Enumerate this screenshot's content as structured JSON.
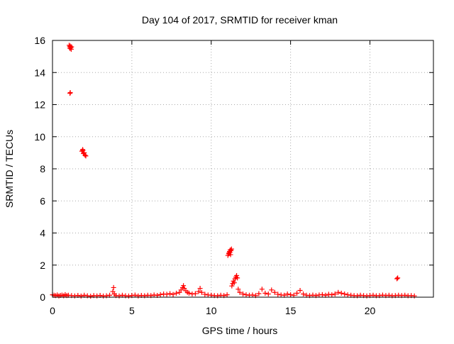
{
  "chart_data": {
    "type": "scatter",
    "title": "Day 104 of 2017, SRMTID for receiver kman",
    "xlabel": "GPS time / hours",
    "ylabel": "SRMTID / TECUs",
    "xlim": [
      0,
      24
    ],
    "ylim": [
      0,
      16
    ],
    "xticks": [
      0,
      5,
      10,
      15,
      20
    ],
    "yticks": [
      0,
      2,
      4,
      6,
      8,
      10,
      12,
      14,
      16
    ],
    "xtick_labels": [
      "0",
      "5",
      "10",
      "15",
      "20"
    ],
    "ytick_labels": [
      "0",
      "2",
      "4",
      "6",
      "8",
      "10",
      "12",
      "14",
      "16"
    ],
    "grid": true,
    "grid_style": "dotted",
    "marker": "plus",
    "color": "#ff0000",
    "series": [
      {
        "points": [
          [
            0.0,
            0.15
          ],
          [
            0.1,
            0.12
          ],
          [
            0.2,
            0.1
          ],
          [
            0.3,
            0.14
          ],
          [
            0.4,
            0.08
          ],
          [
            0.5,
            0.11
          ],
          [
            0.6,
            0.13
          ],
          [
            0.7,
            0.09
          ],
          [
            0.8,
            0.16
          ],
          [
            0.9,
            0.1
          ],
          [
            1.0,
            0.12
          ],
          [
            1.2,
            0.1
          ],
          [
            1.4,
            0.08
          ],
          [
            1.6,
            0.11
          ],
          [
            1.8,
            0.07
          ],
          [
            2.0,
            0.12
          ],
          [
            2.2,
            0.09
          ],
          [
            2.4,
            0.06
          ],
          [
            2.6,
            0.1
          ],
          [
            2.8,
            0.08
          ],
          [
            3.0,
            0.11
          ],
          [
            3.2,
            0.07
          ],
          [
            3.4,
            0.09
          ],
          [
            3.6,
            0.12
          ],
          [
            3.8,
            0.35
          ],
          [
            3.85,
            0.6
          ],
          [
            3.9,
            0.2
          ],
          [
            4.0,
            0.1
          ],
          [
            4.2,
            0.08
          ],
          [
            4.4,
            0.12
          ],
          [
            4.6,
            0.09
          ],
          [
            4.8,
            0.07
          ],
          [
            5.0,
            0.1
          ],
          [
            5.2,
            0.13
          ],
          [
            5.4,
            0.08
          ],
          [
            5.6,
            0.11
          ],
          [
            5.8,
            0.09
          ],
          [
            6.0,
            0.12
          ],
          [
            6.2,
            0.1
          ],
          [
            6.4,
            0.14
          ],
          [
            6.6,
            0.11
          ],
          [
            6.8,
            0.16
          ],
          [
            7.0,
            0.2
          ],
          [
            7.2,
            0.18
          ],
          [
            7.4,
            0.22
          ],
          [
            7.6,
            0.17
          ],
          [
            7.8,
            0.25
          ],
          [
            8.0,
            0.3
          ],
          [
            8.1,
            0.45
          ],
          [
            8.2,
            0.6
          ],
          [
            8.25,
            0.72
          ],
          [
            8.3,
            0.55
          ],
          [
            8.4,
            0.4
          ],
          [
            8.5,
            0.3
          ],
          [
            8.6,
            0.25
          ],
          [
            8.8,
            0.2
          ],
          [
            9.0,
            0.22
          ],
          [
            9.2,
            0.35
          ],
          [
            9.3,
            0.55
          ],
          [
            9.4,
            0.3
          ],
          [
            9.6,
            0.18
          ],
          [
            9.8,
            0.14
          ],
          [
            10.0,
            0.12
          ],
          [
            10.2,
            0.1
          ],
          [
            10.4,
            0.09
          ],
          [
            10.6,
            0.12
          ],
          [
            10.8,
            0.1
          ],
          [
            11.0,
            0.15
          ],
          [
            11.05,
            2.6
          ],
          [
            11.1,
            2.7
          ],
          [
            11.12,
            2.75
          ],
          [
            11.15,
            2.85
          ],
          [
            11.18,
            2.8
          ],
          [
            11.2,
            2.95
          ],
          [
            11.22,
            2.65
          ],
          [
            11.25,
            2.9
          ],
          [
            11.28,
            3.0
          ],
          [
            11.3,
            0.7
          ],
          [
            11.35,
            0.85
          ],
          [
            11.4,
            1.0
          ],
          [
            11.45,
            0.9
          ],
          [
            11.5,
            1.15
          ],
          [
            11.55,
            1.25
          ],
          [
            11.6,
            1.35
          ],
          [
            11.65,
            1.2
          ],
          [
            11.7,
            0.5
          ],
          [
            11.8,
            0.3
          ],
          [
            12.0,
            0.2
          ],
          [
            12.2,
            0.15
          ],
          [
            12.4,
            0.12
          ],
          [
            12.6,
            0.14
          ],
          [
            12.8,
            0.1
          ],
          [
            13.0,
            0.22
          ],
          [
            13.2,
            0.5
          ],
          [
            13.4,
            0.25
          ],
          [
            13.6,
            0.2
          ],
          [
            13.8,
            0.45
          ],
          [
            14.0,
            0.3
          ],
          [
            14.2,
            0.18
          ],
          [
            14.4,
            0.14
          ],
          [
            14.6,
            0.12
          ],
          [
            14.8,
            0.2
          ],
          [
            15.0,
            0.15
          ],
          [
            15.2,
            0.12
          ],
          [
            15.4,
            0.25
          ],
          [
            15.6,
            0.42
          ],
          [
            15.8,
            0.2
          ],
          [
            16.0,
            0.12
          ],
          [
            16.2,
            0.1
          ],
          [
            16.4,
            0.13
          ],
          [
            16.6,
            0.1
          ],
          [
            16.8,
            0.14
          ],
          [
            17.0,
            0.16
          ],
          [
            17.2,
            0.12
          ],
          [
            17.4,
            0.18
          ],
          [
            17.6,
            0.15
          ],
          [
            17.8,
            0.2
          ],
          [
            18.0,
            0.3
          ],
          [
            18.2,
            0.25
          ],
          [
            18.4,
            0.2
          ],
          [
            18.6,
            0.15
          ],
          [
            18.8,
            0.12
          ],
          [
            19.0,
            0.1
          ],
          [
            19.2,
            0.09
          ],
          [
            19.4,
            0.12
          ],
          [
            19.6,
            0.1
          ],
          [
            19.8,
            0.08
          ],
          [
            20.0,
            0.1
          ],
          [
            20.2,
            0.12
          ],
          [
            20.4,
            0.09
          ],
          [
            20.6,
            0.1
          ],
          [
            20.8,
            0.13
          ],
          [
            21.0,
            0.1
          ],
          [
            21.2,
            0.12
          ],
          [
            21.4,
            0.09
          ],
          [
            21.6,
            0.1
          ],
          [
            21.7,
            1.15
          ],
          [
            21.75,
            1.2
          ],
          [
            21.8,
            0.12
          ],
          [
            22.0,
            0.1
          ],
          [
            22.2,
            0.12
          ],
          [
            22.4,
            0.09
          ],
          [
            22.6,
            0.1
          ],
          [
            22.8,
            0.08
          ],
          [
            1.05,
            15.7
          ],
          [
            1.08,
            15.6
          ],
          [
            1.1,
            15.5
          ],
          [
            1.12,
            15.65
          ],
          [
            1.15,
            15.55
          ],
          [
            1.18,
            15.45
          ],
          [
            1.2,
            15.6
          ],
          [
            1.1,
            12.7
          ],
          [
            1.12,
            12.75
          ],
          [
            1.85,
            9.1
          ],
          [
            1.9,
            9.2
          ],
          [
            1.95,
            8.95
          ],
          [
            2.0,
            9.0
          ],
          [
            2.05,
            8.85
          ],
          [
            2.1,
            8.8
          ],
          [
            1.92,
            9.15
          ]
        ]
      }
    ]
  }
}
